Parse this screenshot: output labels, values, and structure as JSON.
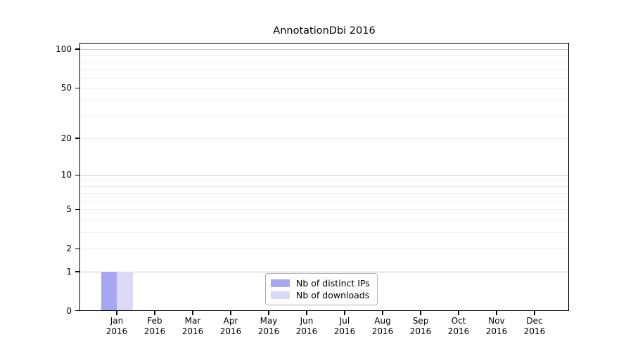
{
  "figure": {
    "title": "AnnotationDbi 2016"
  },
  "chart_data": {
    "type": "bar",
    "title": "AnnotationDbi 2016",
    "categories": [
      "Jan 2016",
      "Feb 2016",
      "Mar 2016",
      "Apr 2016",
      "May 2016",
      "Jun 2016",
      "Jul 2016",
      "Aug 2016",
      "Sep 2016",
      "Oct 2016",
      "Nov 2016",
      "Dec 2016"
    ],
    "series": [
      {
        "name": "Nb of distinct IPs",
        "color": "#a6a6f4",
        "values": [
          1,
          0,
          0,
          0,
          0,
          0,
          0,
          0,
          0,
          0,
          0,
          0
        ]
      },
      {
        "name": "Nb of downloads",
        "color": "#dadaf8",
        "values": [
          1,
          0,
          0,
          0,
          0,
          0,
          0,
          0,
          0,
          0,
          0,
          0
        ]
      }
    ],
    "xlabel": "",
    "ylabel": "",
    "yscale": "log1p",
    "yticks": [
      0,
      1,
      2,
      5,
      10,
      20,
      50,
      100
    ],
    "ytick_labels": [
      "0",
      "1",
      "2",
      "5",
      "10",
      "20",
      "50",
      "100"
    ],
    "ylim": [
      0,
      112
    ],
    "grid": "horizontal",
    "legend": {
      "position": "bottom-center-inside",
      "entries": [
        "Nb of distinct IPs",
        "Nb of downloads"
      ]
    },
    "colors": {
      "axis": "#000000",
      "grid_minor": "#ededed",
      "grid_major": "#c8c8c8",
      "background": "#ffffff",
      "text": "#000000"
    }
  }
}
